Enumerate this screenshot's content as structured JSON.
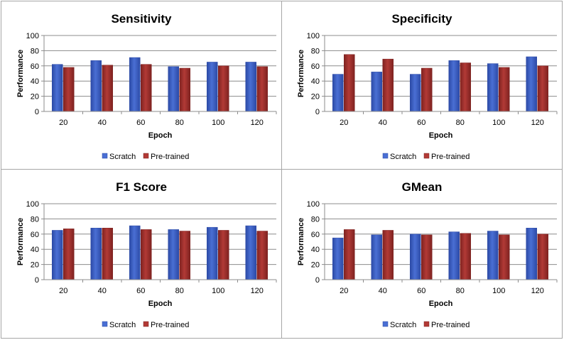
{
  "colors": {
    "scratch_fill": "#4a6fd4",
    "scratch_dark": "#2c4aa6",
    "pretrained_fill": "#b23a36",
    "pretrained_dark": "#7e2220",
    "gridline": "#8c8c8c",
    "axis": "#8c8c8c",
    "text": "#000000"
  },
  "chart_data": [
    {
      "type": "bar",
      "title": "Sensitivity",
      "xlabel": "Epoch",
      "ylabel": "Performance",
      "ylim": [
        0,
        100
      ],
      "yticks": [
        "0",
        "20",
        "40",
        "60",
        "80",
        "100"
      ],
      "categories": [
        "20",
        "40",
        "60",
        "80",
        "100",
        "120"
      ],
      "series": [
        {
          "name": "Scratch",
          "values": [
            62,
            67,
            71,
            59,
            65,
            65
          ]
        },
        {
          "name": "Pre-trained",
          "values": [
            58,
            61,
            62,
            57,
            60,
            59
          ]
        }
      ],
      "legend": [
        "Scratch",
        "Pre-trained"
      ],
      "legend_position": "bottom"
    },
    {
      "type": "bar",
      "title": "Specificity",
      "xlabel": "Epoch",
      "ylabel": "Performance",
      "ylim": [
        0,
        100
      ],
      "yticks": [
        "0",
        "20",
        "40",
        "60",
        "80",
        "100"
      ],
      "categories": [
        "20",
        "40",
        "60",
        "80",
        "100",
        "120"
      ],
      "series": [
        {
          "name": "Scratch",
          "values": [
            49,
            52,
            49,
            67,
            63,
            72
          ]
        },
        {
          "name": "Pre-trained",
          "values": [
            75,
            69,
            57,
            64,
            58,
            60
          ]
        }
      ],
      "legend": [
        "Scratch",
        "Pre-trained"
      ],
      "legend_position": "bottom"
    },
    {
      "type": "bar",
      "title": "F1 Score",
      "xlabel": "Epoch",
      "ylabel": "Performance",
      "ylim": [
        0,
        100
      ],
      "yticks": [
        "0",
        "20",
        "40",
        "60",
        "80",
        "100"
      ],
      "categories": [
        "20",
        "40",
        "60",
        "80",
        "100",
        "120"
      ],
      "series": [
        {
          "name": "Scratch",
          "values": [
            65,
            68,
            71,
            66,
            69,
            71
          ]
        },
        {
          "name": "Pre-trained",
          "values": [
            67,
            68,
            66,
            64,
            65,
            64
          ]
        }
      ],
      "legend": [
        "Scratch",
        "Pre-trained"
      ],
      "legend_position": "bottom"
    },
    {
      "type": "bar",
      "title": "GMean",
      "xlabel": "Epoch",
      "ylabel": "Performance",
      "ylim": [
        0,
        100
      ],
      "yticks": [
        "0",
        "20",
        "40",
        "60",
        "80",
        "100"
      ],
      "categories": [
        "20",
        "40",
        "60",
        "80",
        "100",
        "120"
      ],
      "series": [
        {
          "name": "Scratch",
          "values": [
            55,
            59,
            60,
            63,
            64,
            68
          ]
        },
        {
          "name": "Pre-trained",
          "values": [
            66,
            65,
            59,
            61,
            59,
            60
          ]
        }
      ],
      "legend": [
        "Scratch",
        "Pre-trained"
      ],
      "legend_position": "bottom"
    }
  ]
}
